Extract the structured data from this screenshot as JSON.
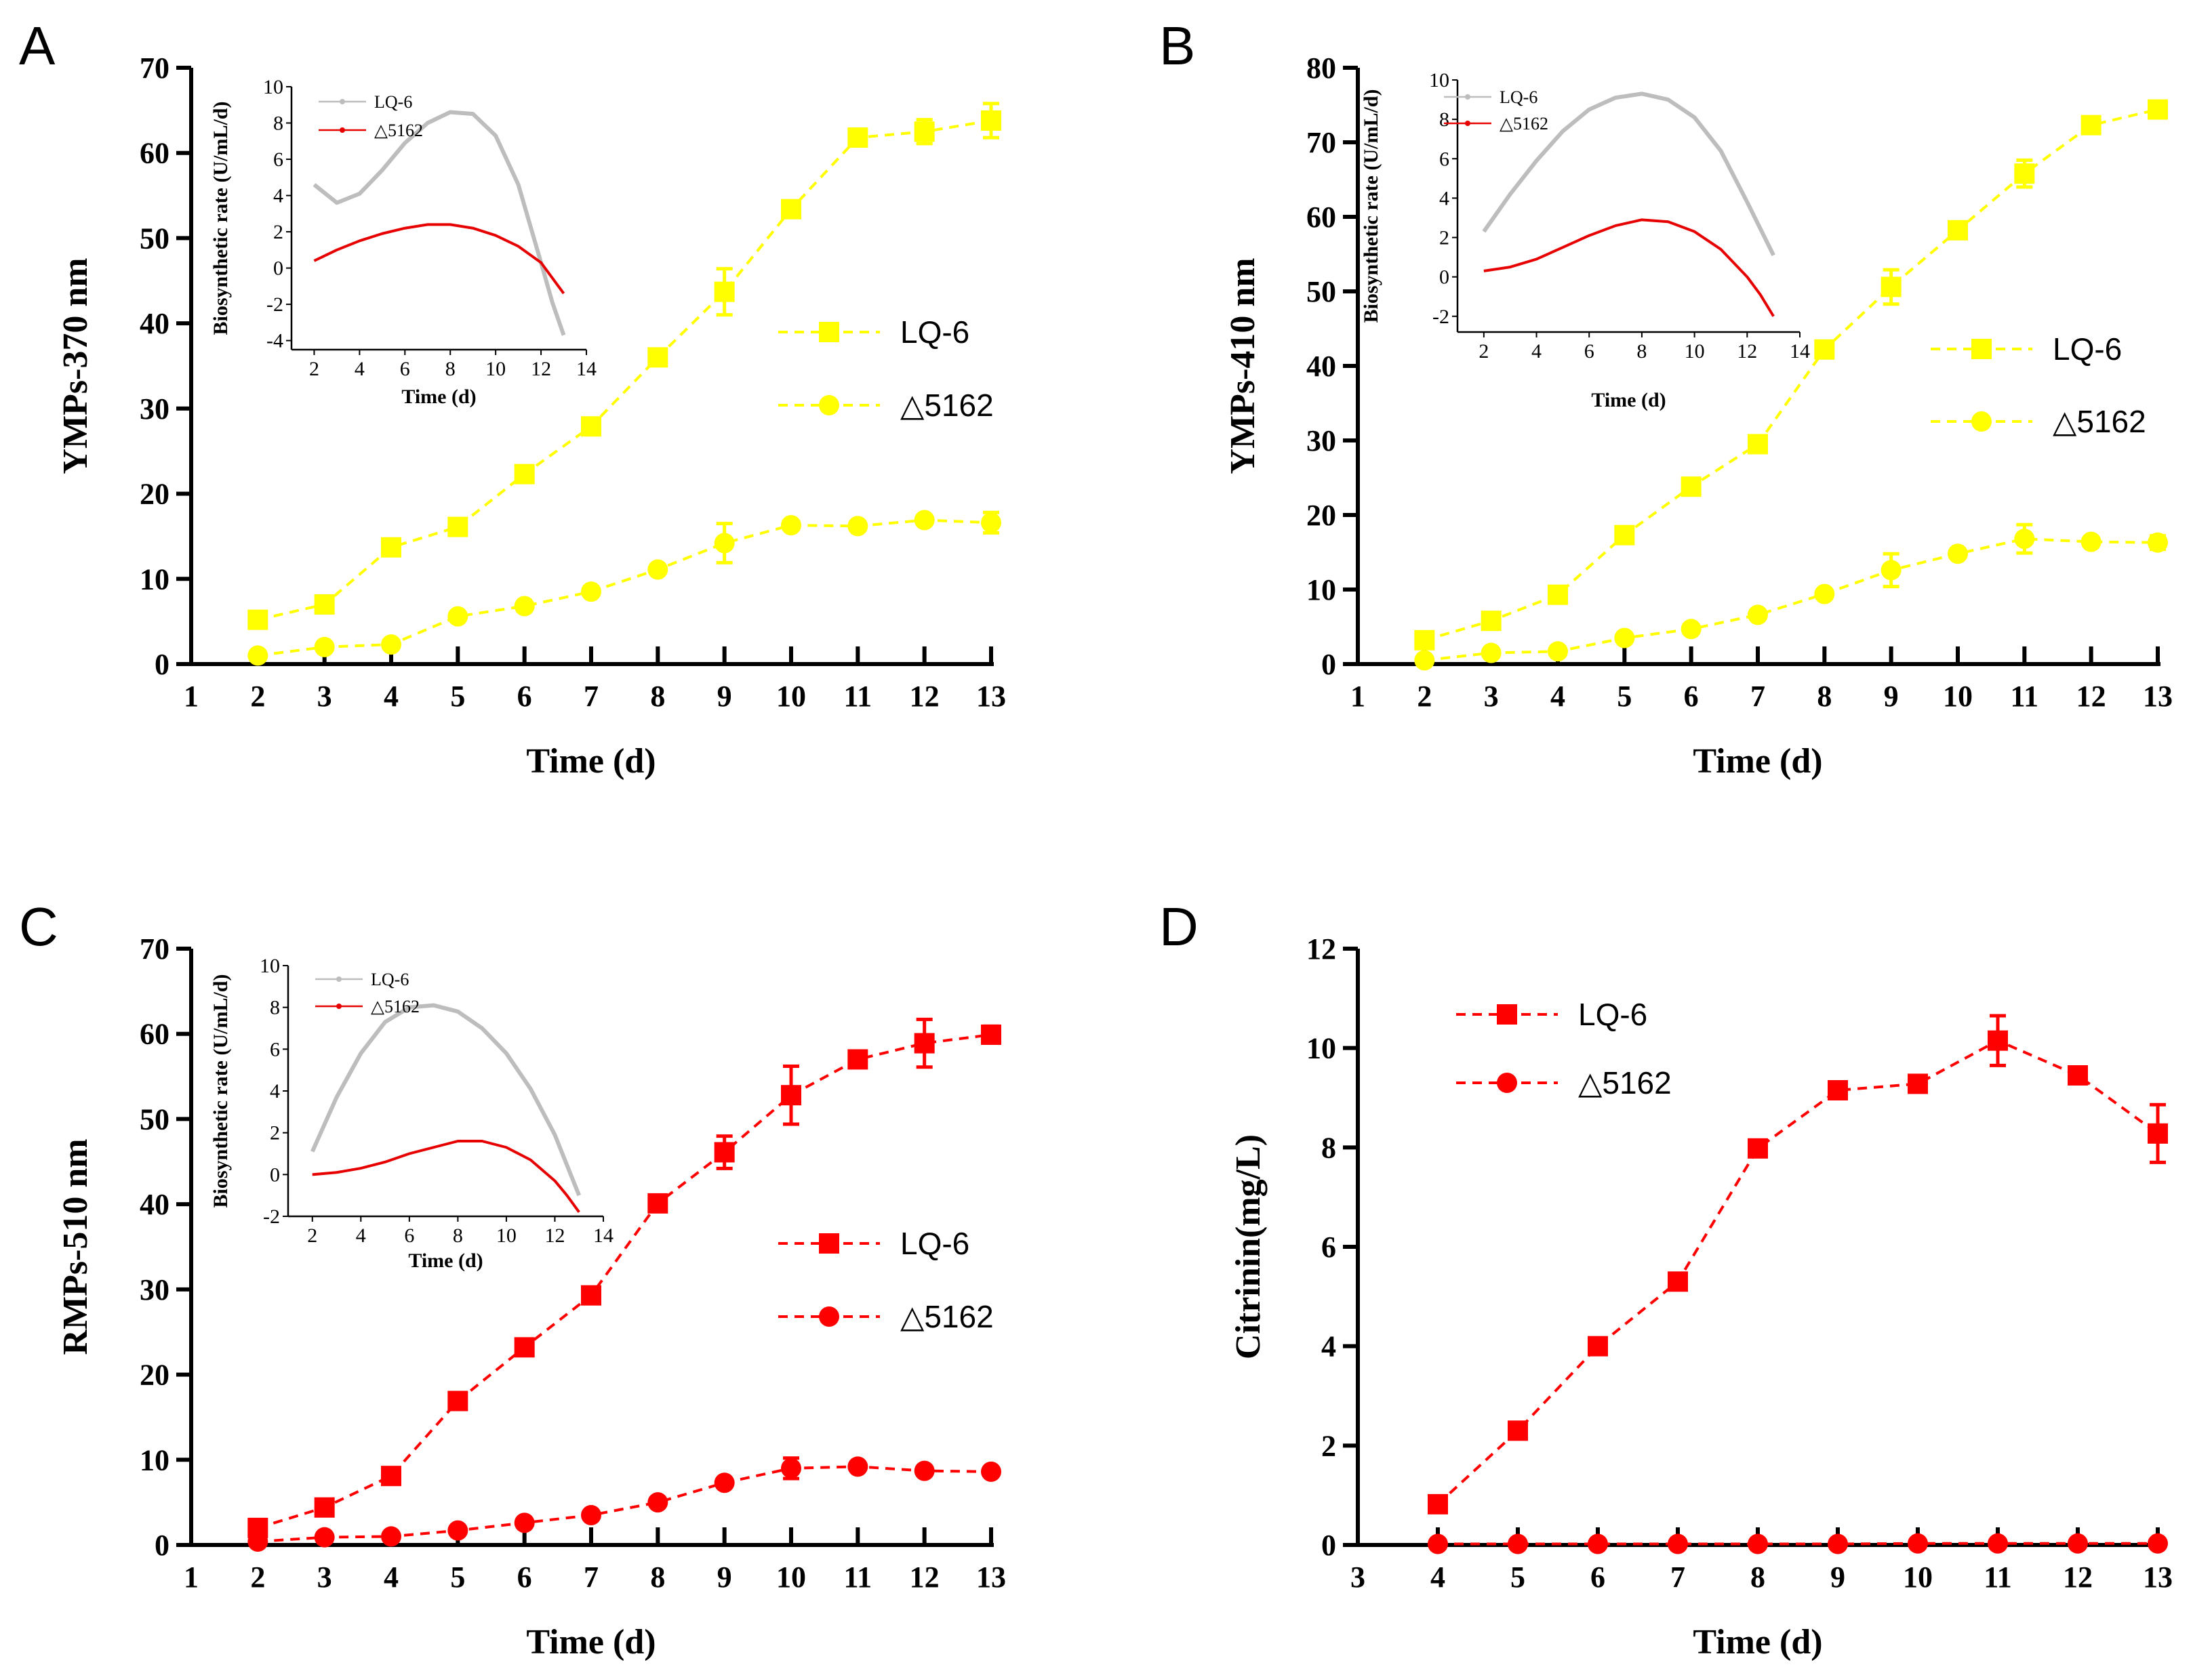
{
  "chart_data": [
    {
      "panel": "A",
      "type": "line",
      "title": "",
      "xlabel": "Time (d)",
      "ylabel": "YMPs-370 nm",
      "xlim": [
        1,
        13
      ],
      "ylim": [
        0,
        70
      ],
      "x_ticks": [
        1,
        2,
        3,
        4,
        5,
        6,
        7,
        8,
        9,
        10,
        11,
        12,
        13
      ],
      "y_ticks": [
        0,
        10,
        20,
        30,
        40,
        50,
        60,
        70
      ],
      "color": "#FFFF00",
      "legend_position": "right",
      "series": [
        {
          "name": "LQ-6",
          "marker": "square",
          "x": [
            2,
            3,
            4,
            5,
            6,
            7,
            8,
            9,
            10,
            11,
            12,
            13
          ],
          "values": [
            5.2,
            7.0,
            13.7,
            16.1,
            22.3,
            27.9,
            36.0,
            43.7,
            53.4,
            61.8,
            62.5,
            63.8
          ],
          "errors": [
            0.3,
            0.4,
            0.6,
            0.6,
            0.5,
            0.5,
            0.5,
            2.7,
            0.5,
            0.6,
            1.4,
            2.0
          ]
        },
        {
          "name": "△5162",
          "marker": "circle",
          "x": [
            2,
            3,
            4,
            5,
            6,
            7,
            8,
            9,
            10,
            11,
            12,
            13
          ],
          "values": [
            1.0,
            2.0,
            2.3,
            5.6,
            6.8,
            8.5,
            11.1,
            14.2,
            16.3,
            16.2,
            16.9,
            16.6
          ],
          "errors": [
            0.2,
            0.2,
            0.3,
            0.3,
            0.3,
            0.4,
            0.4,
            2.3,
            0.4,
            0.4,
            0.4,
            1.2
          ]
        }
      ],
      "inset": {
        "xlabel": "Time (d)",
        "ylabel": "Biosynthetic rate (U/mL/d)",
        "xlim": [
          1,
          14
        ],
        "ylim": [
          -4.5,
          10
        ],
        "x_ticks": [
          2,
          4,
          6,
          8,
          10,
          12,
          14
        ],
        "y_ticks": [
          -4,
          -2,
          0,
          2,
          4,
          6,
          8,
          10
        ],
        "series": [
          {
            "name": "LQ-6",
            "color": "#BDBDBD",
            "x": [
              2,
              3,
              4,
              5,
              6,
              7,
              8,
              9,
              10,
              11,
              12,
              12.5,
              13
            ],
            "values": [
              4.6,
              3.6,
              4.1,
              5.4,
              6.9,
              8.0,
              8.6,
              8.5,
              7.3,
              4.6,
              0.3,
              -1.9,
              -3.7
            ]
          },
          {
            "name": "△5162",
            "color": "#E60000",
            "x": [
              2,
              3,
              4,
              5,
              6,
              7,
              8,
              9,
              10,
              11,
              12,
              13
            ],
            "values": [
              0.4,
              1.0,
              1.5,
              1.9,
              2.2,
              2.4,
              2.4,
              2.2,
              1.8,
              1.2,
              0.3,
              -1.4
            ]
          }
        ]
      }
    },
    {
      "panel": "B",
      "type": "line",
      "title": "",
      "xlabel": "Time (d)",
      "ylabel": "YMPs-410 nm",
      "xlim": [
        1,
        13
      ],
      "ylim": [
        0,
        80
      ],
      "x_ticks": [
        1,
        2,
        3,
        4,
        5,
        6,
        7,
        8,
        9,
        10,
        11,
        12,
        13
      ],
      "y_ticks": [
        0,
        10,
        20,
        30,
        40,
        50,
        60,
        70,
        80
      ],
      "color": "#FFFF00",
      "legend_position": "right",
      "series": [
        {
          "name": "LQ-6",
          "marker": "square",
          "x": [
            2,
            3,
            4,
            5,
            6,
            7,
            8,
            9,
            10,
            11,
            12,
            13
          ],
          "values": [
            3.2,
            5.8,
            9.3,
            17.3,
            23.8,
            29.5,
            42.2,
            50.6,
            58.2,
            65.8,
            72.3,
            74.4
          ],
          "errors": [
            0.3,
            0.4,
            0.5,
            0.6,
            0.5,
            0.5,
            0.5,
            2.3,
            0.6,
            1.8,
            0.5,
            0.6
          ]
        },
        {
          "name": "△5162",
          "marker": "circle",
          "x": [
            2,
            3,
            4,
            5,
            6,
            7,
            8,
            9,
            10,
            11,
            12,
            13
          ],
          "values": [
            0.5,
            1.5,
            1.7,
            3.5,
            4.7,
            6.6,
            9.4,
            12.6,
            14.8,
            16.8,
            16.4,
            16.3
          ],
          "errors": [
            0.1,
            0.2,
            0.2,
            0.3,
            0.3,
            0.3,
            0.4,
            2.2,
            0.4,
            1.9,
            0.5,
            0.9
          ]
        }
      ],
      "inset": {
        "xlabel": "Time (d)",
        "ylabel": "Biosynthetic rate (U/mL/d)",
        "xlim": [
          1,
          14
        ],
        "ylim": [
          -2.8,
          10
        ],
        "x_ticks": [
          2,
          4,
          6,
          8,
          10,
          12,
          14
        ],
        "y_ticks": [
          -2,
          0,
          2,
          4,
          6,
          8,
          10
        ],
        "series": [
          {
            "name": "LQ-6",
            "color": "#BDBDBD",
            "x": [
              2,
              3,
              4,
              5,
              6,
              7,
              8,
              9,
              10,
              11,
              12,
              13
            ],
            "values": [
              2.3,
              4.2,
              5.9,
              7.4,
              8.5,
              9.1,
              9.3,
              9.0,
              8.1,
              6.4,
              3.8,
              1.1
            ]
          },
          {
            "name": "△5162",
            "color": "#E60000",
            "x": [
              2,
              3,
              4,
              5,
              6,
              7,
              8,
              9,
              10,
              11,
              12,
              12.5,
              13
            ],
            "values": [
              0.3,
              0.5,
              0.9,
              1.5,
              2.1,
              2.6,
              2.9,
              2.8,
              2.3,
              1.4,
              0.0,
              -0.9,
              -2.0
            ]
          }
        ]
      }
    },
    {
      "panel": "C",
      "type": "line",
      "title": "",
      "xlabel": "Time (d)",
      "ylabel": "RMPs-510 nm",
      "xlim": [
        1,
        13
      ],
      "ylim": [
        0,
        70
      ],
      "x_ticks": [
        1,
        2,
        3,
        4,
        5,
        6,
        7,
        8,
        9,
        10,
        11,
        12,
        13
      ],
      "y_ticks": [
        0,
        10,
        20,
        30,
        40,
        50,
        60,
        70
      ],
      "color": "#FF0000",
      "legend_position": "right",
      "series": [
        {
          "name": "LQ-6",
          "marker": "square",
          "x": [
            2,
            3,
            4,
            5,
            6,
            7,
            8,
            9,
            10,
            11,
            12,
            13
          ],
          "values": [
            2.0,
            4.4,
            8.1,
            16.9,
            23.2,
            29.3,
            40.1,
            46.1,
            52.8,
            57.0,
            58.9,
            59.9
          ],
          "errors": [
            0.3,
            0.4,
            0.5,
            0.6,
            0.5,
            0.5,
            0.5,
            1.9,
            3.4,
            0.5,
            2.8,
            1.0
          ]
        },
        {
          "name": "△5162",
          "marker": "circle",
          "x": [
            2,
            3,
            4,
            5,
            6,
            7,
            8,
            9,
            10,
            11,
            12,
            13
          ],
          "values": [
            0.4,
            0.9,
            1.0,
            1.7,
            2.6,
            3.5,
            5.0,
            7.3,
            9.0,
            9.2,
            8.7,
            8.6
          ],
          "errors": [
            0.1,
            0.2,
            0.2,
            0.2,
            0.2,
            0.3,
            0.3,
            0.4,
            1.2,
            0.4,
            0.4,
            0.4
          ]
        }
      ],
      "inset": {
        "xlabel": "Time (d)",
        "ylabel": "Biosynthetic rate (U/mL/d)",
        "xlim": [
          1,
          14
        ],
        "ylim": [
          -2,
          10
        ],
        "x_ticks": [
          2,
          4,
          6,
          8,
          10,
          12,
          14
        ],
        "y_ticks": [
          -2,
          0,
          2,
          4,
          6,
          8,
          10
        ],
        "series": [
          {
            "name": "LQ-6",
            "color": "#BDBDBD",
            "x": [
              2,
              3,
              4,
              5,
              6,
              7,
              8,
              9,
              10,
              11,
              12,
              13
            ],
            "values": [
              1.1,
              3.7,
              5.8,
              7.3,
              8.0,
              8.1,
              7.8,
              7.0,
              5.8,
              4.1,
              1.9,
              -1.0
            ]
          },
          {
            "name": "△5162",
            "color": "#E60000",
            "x": [
              2,
              3,
              4,
              5,
              6,
              7,
              8,
              9,
              10,
              11,
              12,
              12.5,
              13
            ],
            "values": [
              0.0,
              0.1,
              0.3,
              0.6,
              1.0,
              1.3,
              1.6,
              1.6,
              1.3,
              0.7,
              -0.3,
              -1.0,
              -1.8
            ]
          }
        ]
      }
    },
    {
      "panel": "D",
      "type": "line",
      "title": "",
      "xlabel": "Time (d)",
      "ylabel": "Citrinin(mg/L)",
      "xlim": [
        3,
        13
      ],
      "ylim": [
        0,
        12
      ],
      "x_ticks": [
        3,
        4,
        5,
        6,
        7,
        8,
        9,
        10,
        11,
        12,
        13
      ],
      "y_ticks": [
        0,
        2,
        4,
        6,
        8,
        10,
        12
      ],
      "color": "#FF0000",
      "legend_position": "top-left",
      "series": [
        {
          "name": "LQ-6",
          "marker": "square",
          "x": [
            4,
            5,
            6,
            7,
            8,
            9,
            10,
            11,
            12,
            13
          ],
          "values": [
            0.82,
            2.3,
            4.0,
            5.3,
            7.98,
            9.15,
            9.28,
            10.15,
            9.45,
            8.28
          ],
          "errors": [
            0.05,
            0.06,
            0.06,
            0.06,
            0.06,
            0.1,
            0.06,
            0.5,
            0.1,
            0.58
          ]
        },
        {
          "name": "△5162",
          "marker": "circle",
          "x": [
            4,
            5,
            6,
            7,
            8,
            9,
            10,
            11,
            12,
            13
          ],
          "values": [
            0.02,
            0.02,
            0.02,
            0.02,
            0.02,
            0.02,
            0.03,
            0.03,
            0.03,
            0.03
          ],
          "errors": [
            0,
            0,
            0,
            0,
            0,
            0,
            0,
            0,
            0,
            0
          ]
        }
      ]
    }
  ]
}
